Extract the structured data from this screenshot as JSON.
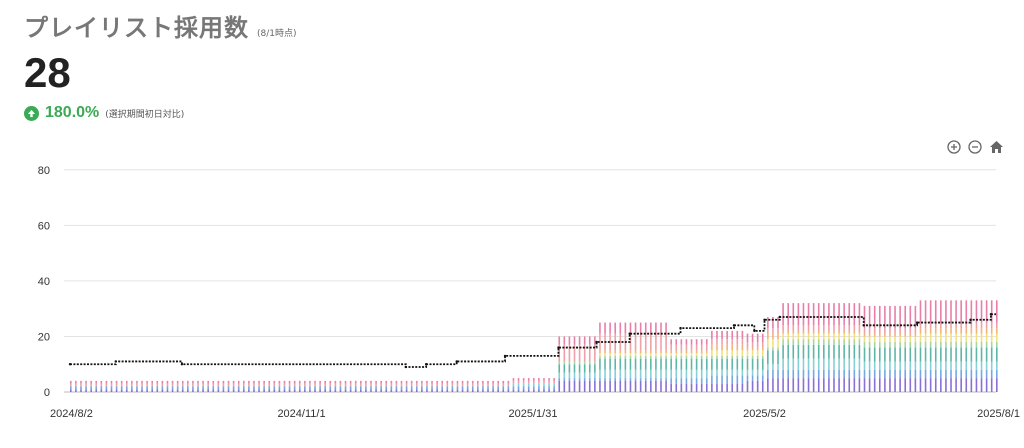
{
  "header": {
    "title": "プレイリスト採用数",
    "as_of": "(8/1時点)",
    "value": "28",
    "delta": "180.0%",
    "delta_note": "(選択期間初日対比)"
  },
  "toolbar": {
    "zoom_in_icon": "zoom-in-icon",
    "zoom_out_icon": "zoom-out-icon",
    "home_icon": "home-icon"
  },
  "colors": {
    "up": "#3aaa55",
    "grid": "#e3e3e3",
    "total_line": "#111111",
    "stack": [
      "#8a6fd6",
      "#74a7e3",
      "#86d0d6",
      "#5fb6a6",
      "#a7d5a0",
      "#f1e17a",
      "#f5b27a",
      "#f0a0a8",
      "#e87fa8"
    ]
  },
  "chart_data": {
    "type": "bar",
    "xlabel": "",
    "ylabel": "",
    "ylim": [
      0,
      90
    ],
    "yticks": [
      0,
      20,
      40,
      60,
      80
    ],
    "xticks": [
      "2024/8/2",
      "2024/11/1",
      "2025/1/31",
      "2025/5/2",
      "2025/8/1"
    ],
    "grid": true,
    "total_points": [
      [
        "2024/8/2",
        10
      ],
      [
        "2024/8/20",
        11
      ],
      [
        "2024/9/15",
        10
      ],
      [
        "2024/12/12",
        9
      ],
      [
        "2024/12/20",
        10
      ],
      [
        "2025/1/1",
        11
      ],
      [
        "2025/1/20",
        13
      ],
      [
        "2025/2/10",
        16
      ],
      [
        "2025/2/25",
        18
      ],
      [
        "2025/3/10",
        21
      ],
      [
        "2025/3/30",
        23
      ],
      [
        "2025/4/20",
        24
      ],
      [
        "2025/4/28",
        22
      ],
      [
        "2025/5/2",
        26
      ],
      [
        "2025/5/8",
        27
      ],
      [
        "2025/6/10",
        24
      ],
      [
        "2025/7/1",
        25
      ],
      [
        "2025/7/22",
        26
      ],
      [
        "2025/7/30",
        28
      ]
    ],
    "stack_segments": [
      [
        "2024/8/2",
        [
          1,
          1,
          0,
          0,
          0,
          0,
          0,
          1,
          1
        ]
      ],
      [
        "2025/1/22",
        [
          1,
          1,
          1,
          0,
          0,
          0,
          0,
          1,
          1
        ]
      ],
      [
        "2025/2/10",
        [
          4,
          1,
          2,
          3,
          1,
          0,
          0,
          6,
          3
        ]
      ],
      [
        "2025/2/25",
        [
          4,
          1,
          3,
          4,
          1,
          1,
          1,
          6,
          4
        ]
      ],
      [
        "2025/3/26",
        [
          3,
          2,
          3,
          4,
          1,
          1,
          1,
          2,
          2
        ]
      ],
      [
        "2025/4/10",
        [
          3,
          3,
          2,
          4,
          1,
          2,
          2,
          2,
          3
        ]
      ],
      [
        "2025/4/25",
        [
          4,
          2,
          2,
          4,
          1,
          2,
          1,
          2,
          3
        ]
      ],
      [
        "2025/5/2",
        [
          5,
          3,
          2,
          5,
          1,
          3,
          2,
          2,
          4
        ]
      ],
      [
        "2025/5/8",
        [
          5,
          3,
          4,
          5,
          2,
          2,
          1,
          2,
          8
        ]
      ],
      [
        "2025/6/10",
        [
          5,
          3,
          3,
          5,
          2,
          2,
          1,
          2,
          8
        ]
      ],
      [
        "2025/7/1",
        [
          5,
          3,
          3,
          5,
          2,
          3,
          2,
          2,
          8
        ]
      ]
    ]
  }
}
